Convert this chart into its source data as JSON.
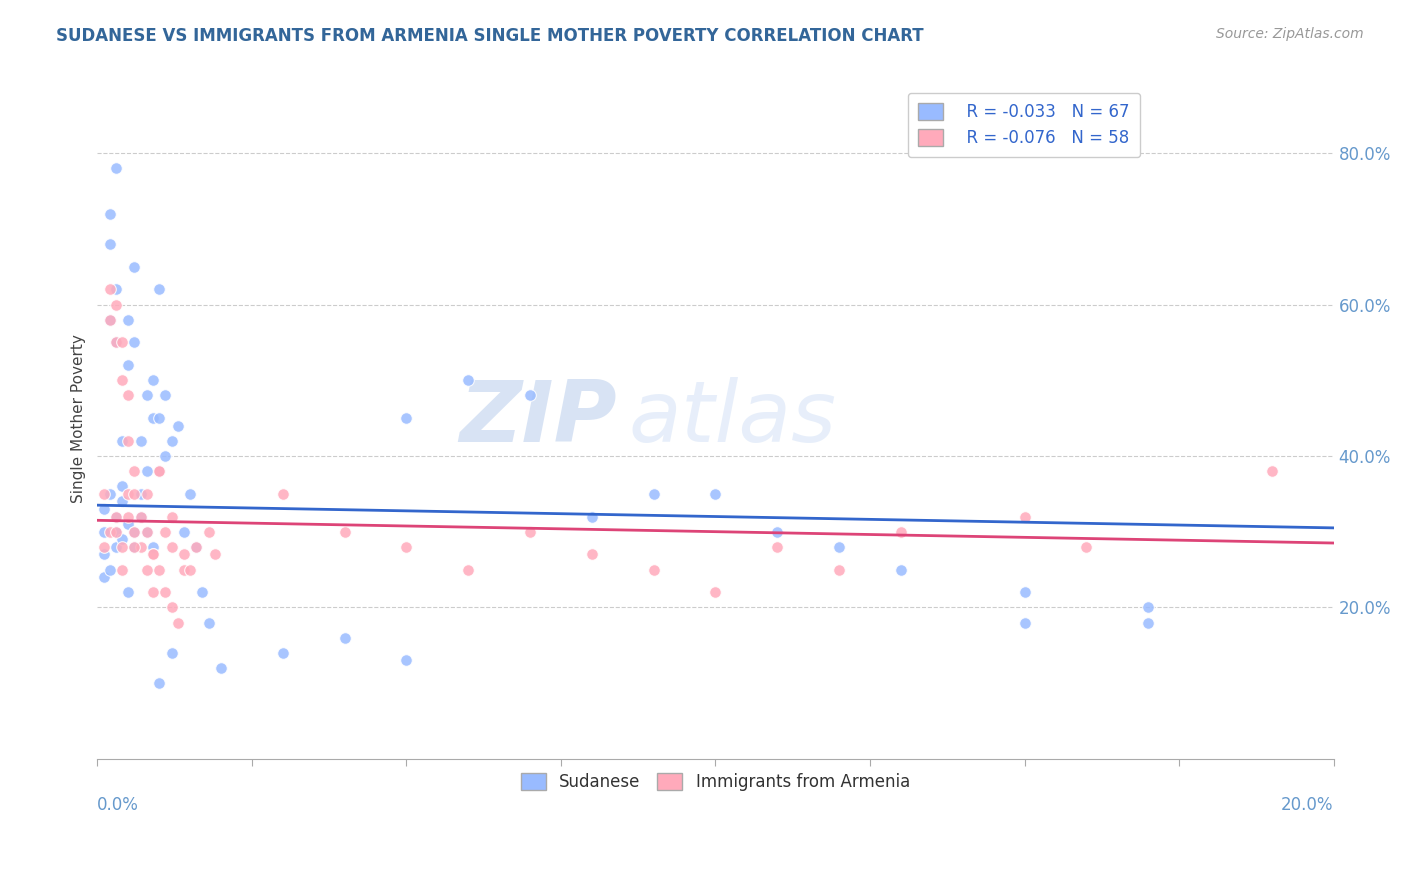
{
  "title": "SUDANESE VS IMMIGRANTS FROM ARMENIA SINGLE MOTHER POVERTY CORRELATION CHART",
  "source": "Source: ZipAtlas.com",
  "ylabel": "Single Mother Poverty",
  "right_yticks": [
    0.2,
    0.4,
    0.6,
    0.8
  ],
  "right_yticklabels": [
    "20.0%",
    "40.0%",
    "60.0%",
    "80.0%"
  ],
  "xmin": 0.0,
  "xmax": 0.2,
  "ymin": 0.0,
  "ymax": 0.9,
  "legend_r1": "R = -0.033",
  "legend_n1": "N = 67",
  "legend_r2": "R = -0.076",
  "legend_n2": "N = 58",
  "color_blue": "#99bbff",
  "color_pink": "#ffaabb",
  "color_blue_line": "#3366cc",
  "color_pink_line": "#dd4477",
  "title_color": "#336699",
  "axis_color": "#6699cc",
  "watermark_zip": "ZIP",
  "watermark_atlas": "atlas",
  "background_color": "#ffffff",
  "blue_line_x": [
    0.0,
    0.2
  ],
  "blue_line_y": [
    0.335,
    0.305
  ],
  "pink_line_x": [
    0.0,
    0.2
  ],
  "pink_line_y": [
    0.315,
    0.285
  ],
  "sudanese_x": [
    0.001,
    0.001,
    0.001,
    0.001,
    0.002,
    0.002,
    0.002,
    0.002,
    0.002,
    0.003,
    0.003,
    0.003,
    0.003,
    0.003,
    0.003,
    0.004,
    0.004,
    0.004,
    0.004,
    0.005,
    0.005,
    0.005,
    0.005,
    0.006,
    0.006,
    0.006,
    0.006,
    0.007,
    0.007,
    0.007,
    0.008,
    0.008,
    0.008,
    0.009,
    0.009,
    0.009,
    0.01,
    0.01,
    0.01,
    0.011,
    0.011,
    0.012,
    0.012,
    0.013,
    0.014,
    0.015,
    0.016,
    0.017,
    0.018,
    0.05,
    0.06,
    0.07,
    0.08,
    0.09,
    0.1,
    0.11,
    0.12,
    0.13,
    0.15,
    0.17,
    0.01,
    0.02,
    0.03,
    0.04,
    0.05,
    0.17,
    0.15
  ],
  "sudanese_y": [
    0.33,
    0.3,
    0.27,
    0.24,
    0.68,
    0.72,
    0.58,
    0.35,
    0.25,
    0.62,
    0.55,
    0.3,
    0.28,
    0.32,
    0.78,
    0.34,
    0.36,
    0.29,
    0.42,
    0.58,
    0.52,
    0.31,
    0.22,
    0.55,
    0.65,
    0.3,
    0.28,
    0.35,
    0.42,
    0.32,
    0.48,
    0.3,
    0.38,
    0.5,
    0.45,
    0.28,
    0.45,
    0.38,
    0.62,
    0.48,
    0.4,
    0.42,
    0.14,
    0.44,
    0.3,
    0.35,
    0.28,
    0.22,
    0.18,
    0.45,
    0.5,
    0.48,
    0.32,
    0.35,
    0.35,
    0.3,
    0.28,
    0.25,
    0.22,
    0.18,
    0.1,
    0.12,
    0.14,
    0.16,
    0.13,
    0.2,
    0.18
  ],
  "armenia_x": [
    0.001,
    0.001,
    0.002,
    0.002,
    0.002,
    0.003,
    0.003,
    0.003,
    0.004,
    0.004,
    0.004,
    0.005,
    0.005,
    0.005,
    0.006,
    0.006,
    0.006,
    0.007,
    0.007,
    0.008,
    0.008,
    0.009,
    0.009,
    0.01,
    0.01,
    0.011,
    0.011,
    0.012,
    0.012,
    0.013,
    0.014,
    0.015,
    0.016,
    0.018,
    0.019,
    0.03,
    0.04,
    0.05,
    0.06,
    0.07,
    0.08,
    0.09,
    0.1,
    0.11,
    0.12,
    0.13,
    0.15,
    0.16,
    0.003,
    0.004,
    0.005,
    0.006,
    0.008,
    0.009,
    0.01,
    0.012,
    0.014,
    0.19
  ],
  "armenia_y": [
    0.35,
    0.28,
    0.58,
    0.62,
    0.3,
    0.6,
    0.55,
    0.32,
    0.55,
    0.5,
    0.28,
    0.48,
    0.42,
    0.35,
    0.38,
    0.35,
    0.3,
    0.32,
    0.28,
    0.3,
    0.25,
    0.27,
    0.22,
    0.25,
    0.38,
    0.22,
    0.3,
    0.2,
    0.28,
    0.18,
    0.25,
    0.25,
    0.28,
    0.3,
    0.27,
    0.35,
    0.3,
    0.28,
    0.25,
    0.3,
    0.27,
    0.25,
    0.22,
    0.28,
    0.25,
    0.3,
    0.32,
    0.28,
    0.3,
    0.25,
    0.32,
    0.28,
    0.35,
    0.27,
    0.38,
    0.32,
    0.27,
    0.38
  ]
}
